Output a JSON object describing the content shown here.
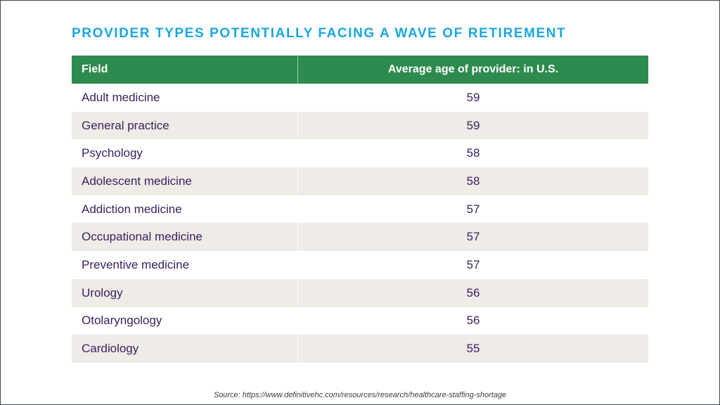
{
  "title": "PROVIDER TYPES POTENTIALLY FACING A WAVE OF RETIREMENT",
  "source": "Source: https://www.definitivehc.com/resources/research/healthcare-staffing-shortage",
  "colors": {
    "title": "#1aa7dd",
    "header_bg": "#2e8b4f",
    "text": "#3a1f5d",
    "alt_row": "#efebe7"
  },
  "chart_data": {
    "type": "table",
    "title": "PROVIDER TYPES POTENTIALLY FACING A WAVE OF RETIREMENT",
    "columns": [
      "Field",
      "Average age of provider: in U.S."
    ],
    "rows": [
      {
        "field": "Adult medicine",
        "age": 59
      },
      {
        "field": "General practice",
        "age": 59
      },
      {
        "field": "Psychology",
        "age": 58
      },
      {
        "field": "Adolescent medicine",
        "age": 58
      },
      {
        "field": "Addiction medicine",
        "age": 57
      },
      {
        "field": "Occupational medicine",
        "age": 57
      },
      {
        "field": "Preventive medicine",
        "age": 57
      },
      {
        "field": "Urology",
        "age": 56
      },
      {
        "field": "Otolaryngology",
        "age": 56
      },
      {
        "field": "Cardiology",
        "age": 55
      }
    ]
  }
}
